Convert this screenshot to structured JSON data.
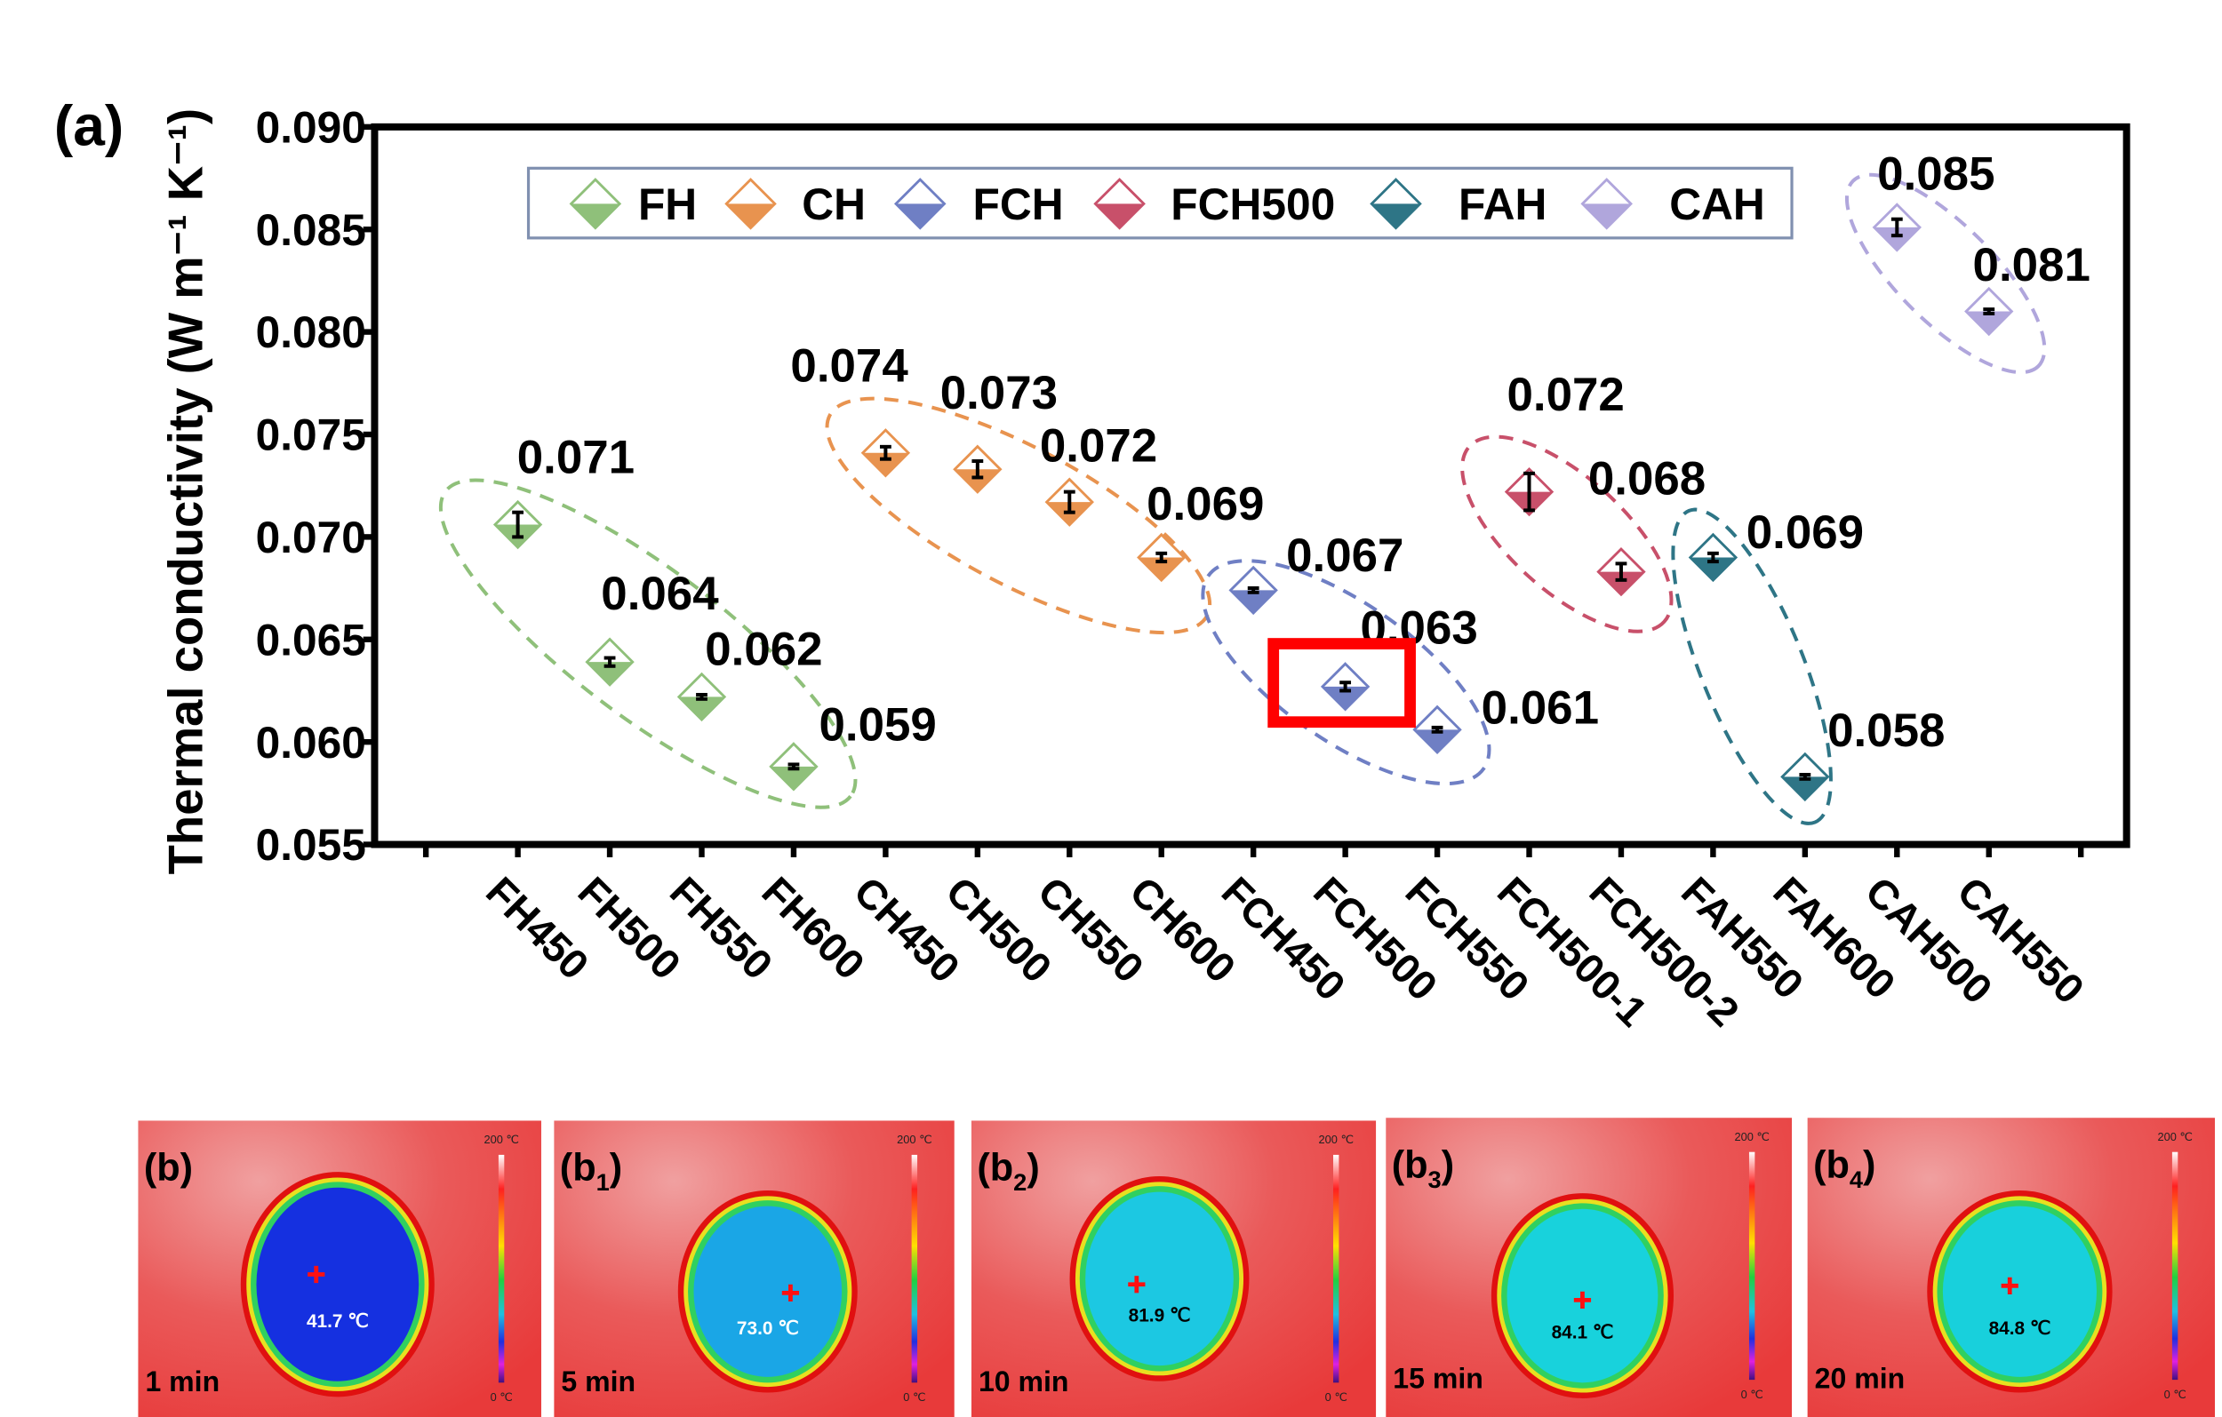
{
  "panel_a_label": "(a)",
  "chart_data": {
    "type": "scatter",
    "ylabel": "Thermal conductivity (W m⁻¹ K⁻¹)",
    "ylim": [
      0.055,
      0.09
    ],
    "yticks": [
      "0.055",
      "0.060",
      "0.065",
      "0.070",
      "0.075",
      "0.080",
      "0.085",
      "0.090"
    ],
    "categories": [
      "FH450",
      "FH500",
      "FH550",
      "FH600",
      "CH450",
      "CH500",
      "CH550",
      "CH600",
      "FCH450",
      "FCH500",
      "FCH550",
      "FCH500-1",
      "FCH500-2",
      "FAH550",
      "FAH600",
      "CAH500",
      "CAH550"
    ],
    "legend_placement": "top",
    "grid": false,
    "series": [
      {
        "name": "FH",
        "color": "#8fc07a",
        "categories": [
          "FH450",
          "FH500",
          "FH550",
          "FH600"
        ],
        "values": [
          0.0706,
          0.0639,
          0.0622,
          0.0588
        ],
        "errors": [
          0.0006,
          0.0002,
          0.0001,
          0.0001
        ],
        "labels": [
          "0.071",
          "0.064",
          "0.062",
          "0.059"
        ]
      },
      {
        "name": "CH",
        "color": "#e8934f",
        "categories": [
          "CH450",
          "CH500",
          "CH550",
          "CH600"
        ],
        "values": [
          0.0741,
          0.0733,
          0.0717,
          0.069
        ],
        "errors": [
          0.0003,
          0.0004,
          0.0005,
          0.0002
        ],
        "labels": [
          "0.074",
          "0.073",
          "0.072",
          "0.069"
        ]
      },
      {
        "name": "FCH",
        "color": "#6f7fc4",
        "categories": [
          "FCH450",
          "FCH500",
          "FCH550"
        ],
        "values": [
          0.0674,
          0.0627,
          0.0606
        ],
        "errors": [
          0.0001,
          0.0002,
          0.0001
        ],
        "labels": [
          "0.067",
          "0.063",
          "0.061"
        ]
      },
      {
        "name": "FCH500",
        "color": "#c8506a",
        "categories": [
          "FCH500-1",
          "FCH500-2"
        ],
        "values": [
          0.0722,
          0.0683
        ],
        "errors": [
          0.0009,
          0.0004
        ],
        "labels": [
          "0.072",
          "0.068"
        ]
      },
      {
        "name": "FAH",
        "color": "#2e7586",
        "categories": [
          "FAH550",
          "FAH600"
        ],
        "values": [
          0.069,
          0.0583
        ],
        "errors": [
          0.0002,
          0.0001
        ],
        "labels": [
          "0.069",
          "0.058"
        ]
      },
      {
        "name": "CAH",
        "color": "#b0a6dc",
        "categories": [
          "CAH500",
          "CAH550"
        ],
        "values": [
          0.0851,
          0.081
        ],
        "errors": [
          0.0004,
          0.0001
        ],
        "labels": [
          "0.085",
          "0.081"
        ]
      }
    ],
    "highlight": {
      "category": "FCH500",
      "color": "#ff0000"
    }
  },
  "thermal_images": [
    {
      "label": "(b)",
      "sub": "",
      "time": "1 min",
      "temp": "41.7 ℃",
      "scale_max": "200 ℃",
      "scale_min": "0 ℃",
      "center_color": "#1530e0",
      "temp_color": "#ffffff"
    },
    {
      "label": "(b",
      "sub": "1",
      "time": "5 min",
      "temp": "73.0 ℃",
      "scale_max": "200 ℃",
      "scale_min": "0 ℃",
      "center_color": "#1aa6e6",
      "temp_color": "#ffffff"
    },
    {
      "label": "(b",
      "sub": "2",
      "time": "10 min",
      "temp": "81.9 ℃",
      "scale_max": "200 ℃",
      "scale_min": "0 ℃",
      "center_color": "#1cc8e2",
      "temp_color": "#000000"
    },
    {
      "label": "(b",
      "sub": "3",
      "time": "15 min",
      "temp": "84.1 ℃",
      "scale_max": "200 ℃",
      "scale_min": "0 ℃",
      "center_color": "#18d2dc",
      "temp_color": "#000000"
    },
    {
      "label": "(b",
      "sub": "4",
      "time": "20 min",
      "temp": "84.8 ℃",
      "scale_max": "200 ℃",
      "scale_min": "0 ℃",
      "center_color": "#18d0dc",
      "temp_color": "#000000"
    }
  ]
}
